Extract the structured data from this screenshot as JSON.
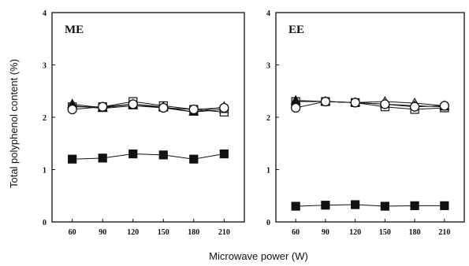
{
  "chart_data": [
    {
      "type": "line",
      "panel_label": "ME",
      "x": [
        60,
        90,
        120,
        150,
        180,
        210
      ],
      "xlim": [
        40,
        230
      ],
      "ylim": [
        0,
        4
      ],
      "yticks": [
        0,
        1,
        2,
        3,
        4
      ],
      "series": [
        {
          "marker": "filled-square",
          "values": [
            1.2,
            1.22,
            1.3,
            1.28,
            1.2,
            1.3
          ]
        },
        {
          "marker": "open-square",
          "values": [
            2.2,
            2.2,
            2.3,
            2.22,
            2.15,
            2.1
          ]
        },
        {
          "marker": "open-triangle",
          "values": [
            2.25,
            2.18,
            2.25,
            2.2,
            2.1,
            2.15
          ]
        },
        {
          "marker": "filled-triangle",
          "values": [
            2.22,
            2.17,
            2.22,
            2.18,
            2.1,
            2.2
          ]
        },
        {
          "marker": "open-circle",
          "values": [
            2.15,
            2.2,
            2.25,
            2.18,
            2.15,
            2.18
          ]
        }
      ]
    },
    {
      "type": "line",
      "panel_label": "EE",
      "x": [
        60,
        90,
        120,
        150,
        180,
        210
      ],
      "xlim": [
        40,
        230
      ],
      "ylim": [
        0,
        4
      ],
      "yticks": [
        0,
        1,
        2,
        3,
        4
      ],
      "series": [
        {
          "marker": "filled-square",
          "values": [
            0.3,
            0.32,
            0.33,
            0.3,
            0.31,
            0.31
          ]
        },
        {
          "marker": "open-square",
          "values": [
            2.3,
            2.3,
            2.28,
            2.2,
            2.15,
            2.18
          ]
        },
        {
          "marker": "open-triangle",
          "values": [
            2.32,
            2.3,
            2.28,
            2.3,
            2.27,
            2.22
          ]
        },
        {
          "marker": "filled-triangle",
          "values": [
            2.3,
            2.3,
            2.28,
            2.25,
            2.22,
            2.2
          ]
        },
        {
          "marker": "open-circle",
          "values": [
            2.18,
            2.3,
            2.28,
            2.25,
            2.2,
            2.22
          ]
        }
      ]
    }
  ],
  "ylabel": "Total polyphenol content (%)",
  "xlabel": "Microwave power  (W)"
}
